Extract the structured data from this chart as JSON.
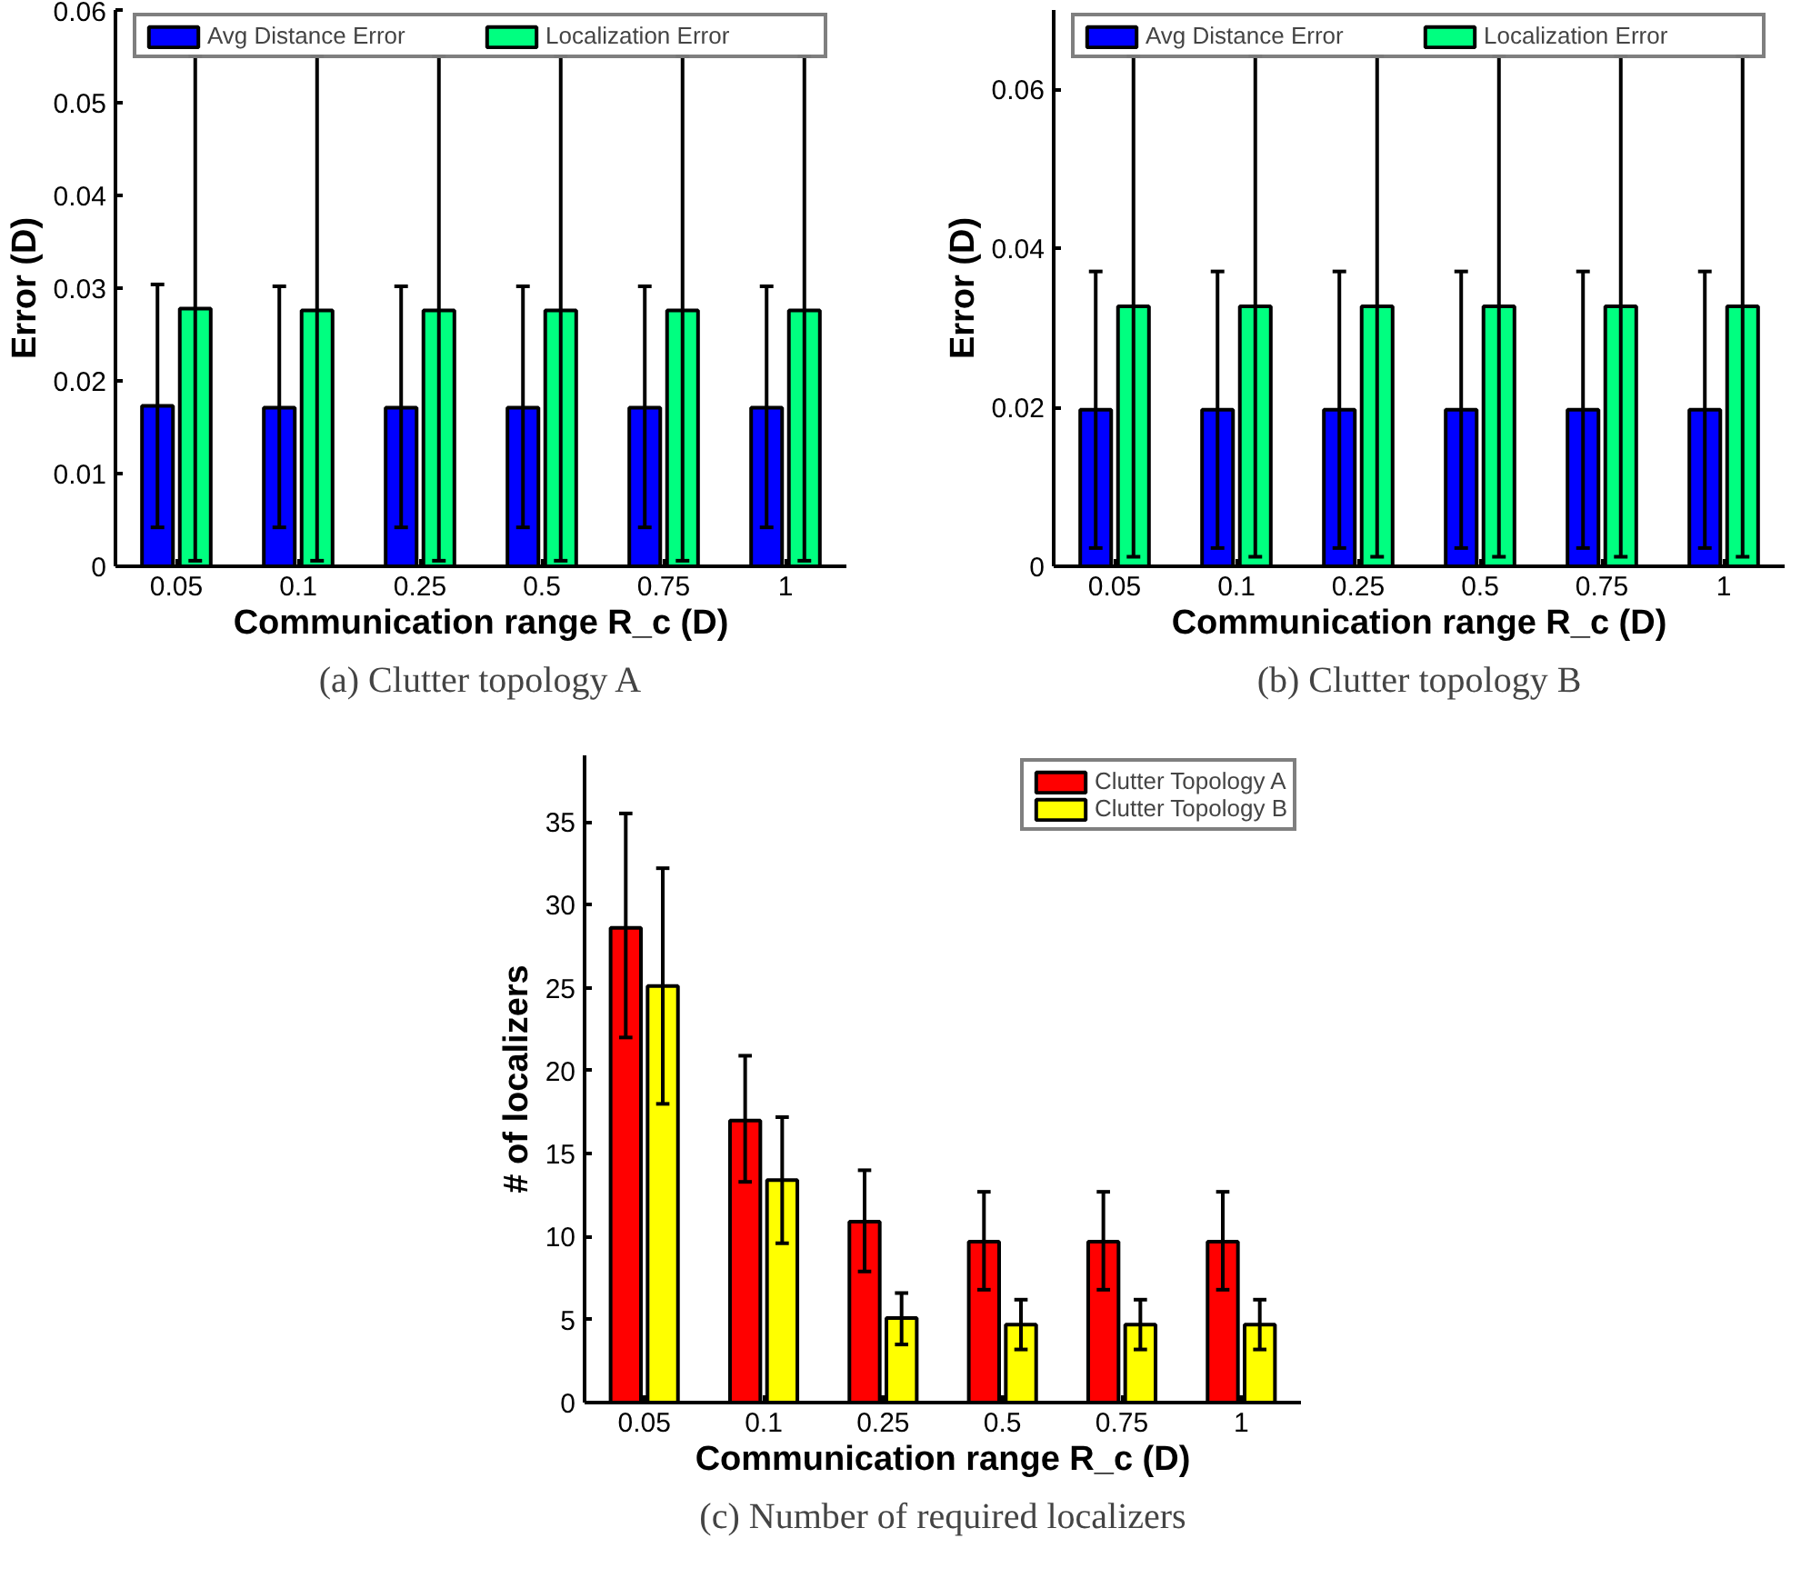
{
  "chart_data": [
    {
      "type": "bar",
      "title": "(a) Clutter topology A",
      "xlabel": "Communication range R_c (D)",
      "ylabel": "Error (D)",
      "categories": [
        "0.05",
        "0.1",
        "0.25",
        "0.5",
        "0.75",
        "1"
      ],
      "series": [
        {
          "name": "Avg Distance Error",
          "color": "#0000ff",
          "values": [
            0.0173,
            0.0171,
            0.0171,
            0.0171,
            0.0171,
            0.0171
          ],
          "errors": [
            [
              0.0042,
              0.0304
            ],
            [
              0.0042,
              0.0302
            ],
            [
              0.0042,
              0.0302
            ],
            [
              0.0042,
              0.0302
            ],
            [
              0.0042,
              0.0302
            ],
            [
              0.0042,
              0.0302
            ]
          ]
        },
        {
          "name": "Localization Error",
          "color": "#00ff80",
          "values": [
            0.0278,
            0.0276,
            0.0276,
            0.0276,
            0.0276,
            0.0276
          ],
          "errors": [
            [
              0.0006,
              0.055
            ],
            [
              0.0006,
              0.055
            ],
            [
              0.0006,
              0.055
            ],
            [
              0.0006,
              0.055
            ],
            [
              0.0006,
              0.055
            ],
            [
              0.0006,
              0.055
            ]
          ]
        }
      ],
      "ylim": [
        0,
        0.06
      ],
      "yticks": [
        0,
        0.01,
        0.02,
        0.03,
        0.04,
        0.05,
        0.06
      ],
      "grid": false,
      "legend": "top"
    },
    {
      "type": "bar",
      "title": "(b) Clutter topology B",
      "xlabel": "Communication range R_c (D)",
      "ylabel": "Error (D)",
      "categories": [
        "0.05",
        "0.1",
        "0.25",
        "0.5",
        "0.75",
        "1"
      ],
      "series": [
        {
          "name": "Avg Distance Error",
          "color": "#0000ff",
          "values": [
            0.0197,
            0.0197,
            0.0197,
            0.0197,
            0.0197,
            0.0197
          ],
          "errors": [
            [
              0.0023,
              0.0371
            ],
            [
              0.0023,
              0.0371
            ],
            [
              0.0023,
              0.0371
            ],
            [
              0.0023,
              0.0371
            ],
            [
              0.0023,
              0.0371
            ],
            [
              0.0023,
              0.0371
            ]
          ]
        },
        {
          "name": "Localization Error",
          "color": "#00ff80",
          "values": [
            0.0327,
            0.0327,
            0.0327,
            0.0327,
            0.0327,
            0.0327
          ],
          "errors": [
            [
              0.0012,
              0.0642
            ],
            [
              0.0012,
              0.0642
            ],
            [
              0.0012,
              0.0642
            ],
            [
              0.0012,
              0.0642
            ],
            [
              0.0012,
              0.0642
            ],
            [
              0.0012,
              0.0642
            ]
          ]
        }
      ],
      "ylim": [
        0,
        0.07
      ],
      "yticks": [
        0,
        0.02,
        0.04,
        0.06
      ],
      "grid": false,
      "legend": "top"
    },
    {
      "type": "bar",
      "title": "(c) Number of required localizers",
      "xlabel": "Communication range R_c (D)",
      "ylabel": "# of localizers",
      "categories": [
        "0.05",
        "0.1",
        "0.25",
        "0.5",
        "0.75",
        "1"
      ],
      "series": [
        {
          "name": "Clutter Topology A",
          "color": "#ff0000",
          "values": [
            28.6,
            17.0,
            10.9,
            9.7,
            9.7,
            9.7
          ],
          "errors": [
            [
              22.0,
              35.5
            ],
            [
              13.3,
              20.9
            ],
            [
              7.9,
              14.0
            ],
            [
              6.8,
              12.7
            ],
            [
              6.8,
              12.7
            ],
            [
              6.8,
              12.7
            ]
          ]
        },
        {
          "name": "Clutter Topology B",
          "color": "#ffff00",
          "values": [
            25.1,
            13.4,
            5.1,
            4.7,
            4.7,
            4.7
          ],
          "errors": [
            [
              18.0,
              32.2
            ],
            [
              9.6,
              17.2
            ],
            [
              3.5,
              6.6
            ],
            [
              3.2,
              6.2
            ],
            [
              3.2,
              6.2
            ],
            [
              3.2,
              6.2
            ]
          ]
        }
      ],
      "ylim": [
        0,
        39
      ],
      "yticks": [
        0,
        5,
        10,
        15,
        20,
        25,
        30,
        35
      ],
      "grid": false,
      "legend": "top right"
    }
  ]
}
